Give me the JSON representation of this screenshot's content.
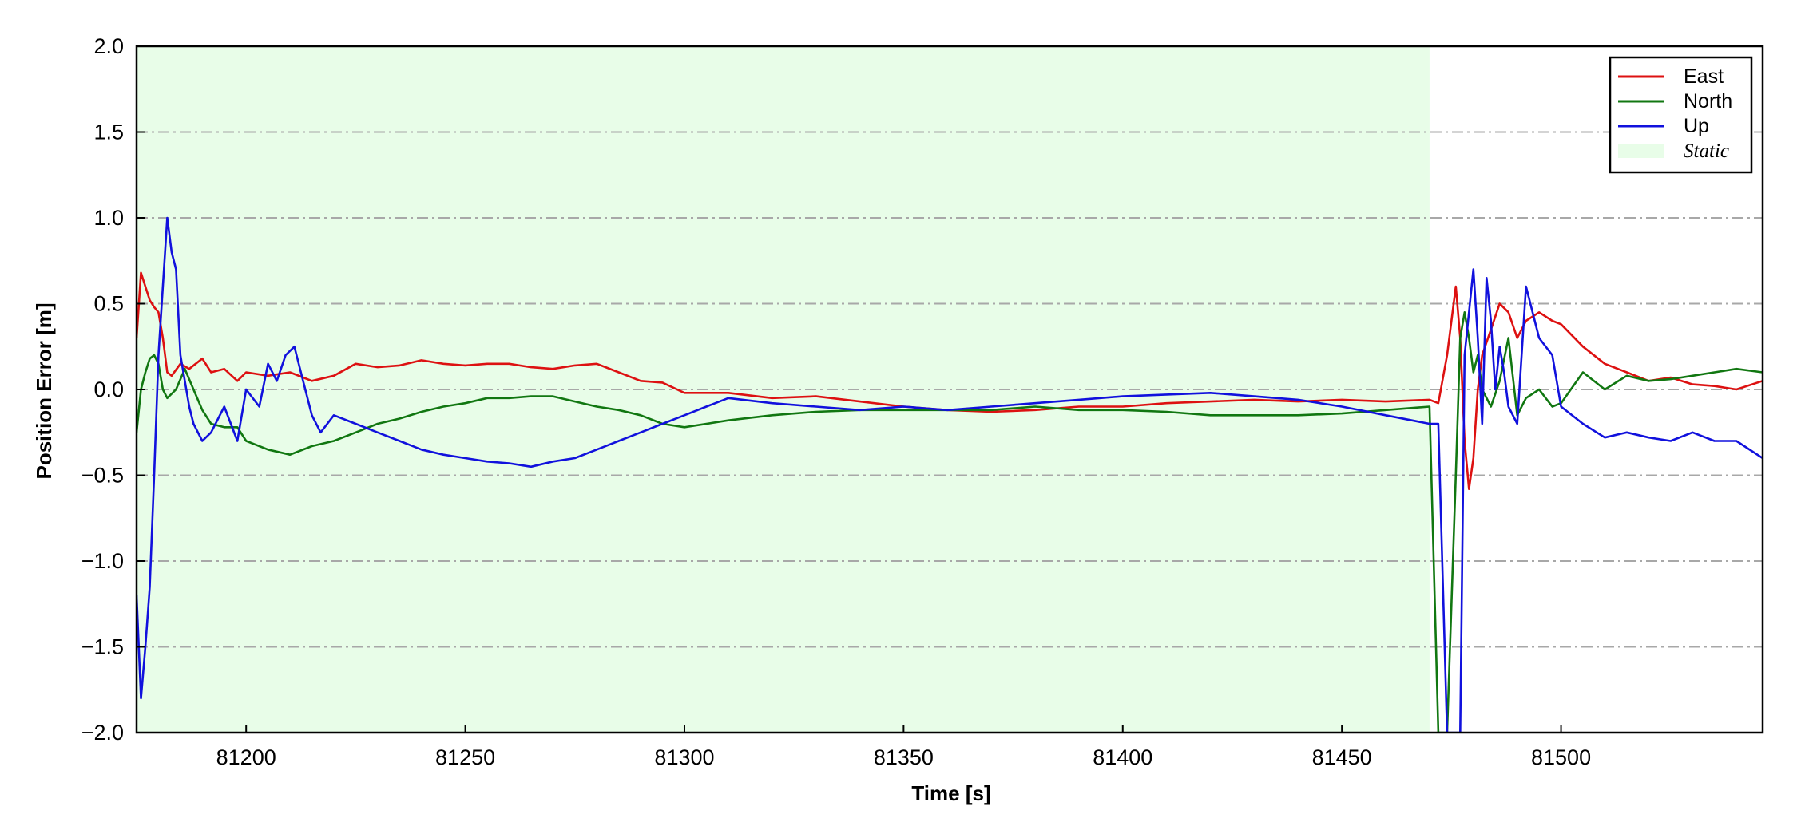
{
  "chart_data": {
    "type": "line",
    "title": "",
    "xlabel": "Time [s]",
    "ylabel": "Position Error [m]",
    "xlim": [
      81175,
      81546
    ],
    "ylim": [
      -2.0,
      2.0
    ],
    "x_ticks": [
      81200,
      81250,
      81300,
      81350,
      81400,
      81450,
      81500
    ],
    "y_ticks": [
      -2.0,
      -1.5,
      -1.0,
      -0.5,
      0.0,
      0.5,
      1.0,
      1.5,
      2.0
    ],
    "x_tick_labels": [
      "81200",
      "81250",
      "81300",
      "81350",
      "81400",
      "81450",
      "81500"
    ],
    "y_tick_labels": [
      "−2.0",
      "−1.5",
      "−1.0",
      "−0.5",
      "0.0",
      "0.5",
      "1.0",
      "1.5",
      "2.0"
    ],
    "grid": "horizontal dash-dot",
    "legend_position": "top-right",
    "shaded_regions": [
      {
        "name": "Static",
        "x_start": 81175,
        "x_end": 81470,
        "color": "#e8fde8"
      }
    ],
    "series": [
      {
        "name": "East",
        "color": "#dd1111",
        "x": [
          81175,
          81176,
          81177,
          81178,
          81179,
          81180,
          81181,
          81182,
          81183,
          81185,
          81187,
          81190,
          81192,
          81195,
          81198,
          81200,
          81205,
          81210,
          81215,
          81220,
          81225,
          81230,
          81235,
          81240,
          81245,
          81250,
          81255,
          81260,
          81265,
          81270,
          81275,
          81280,
          81285,
          81290,
          81295,
          81300,
          81310,
          81320,
          81330,
          81340,
          81350,
          81360,
          81370,
          81380,
          81390,
          81400,
          81410,
          81420,
          81430,
          81440,
          81450,
          81460,
          81470,
          81472,
          81474,
          81476,
          81477,
          81478,
          81479,
          81480,
          81481,
          81482,
          81484,
          81486,
          81488,
          81490,
          81492,
          81495,
          81498,
          81500,
          81505,
          81510,
          81515,
          81520,
          81525,
          81530,
          81535,
          81540,
          81546
        ],
        "y": [
          0.3,
          0.68,
          0.6,
          0.52,
          0.48,
          0.45,
          0.3,
          0.1,
          0.08,
          0.15,
          0.12,
          0.18,
          0.1,
          0.12,
          0.05,
          0.1,
          0.08,
          0.1,
          0.05,
          0.08,
          0.15,
          0.13,
          0.14,
          0.17,
          0.15,
          0.14,
          0.15,
          0.15,
          0.13,
          0.12,
          0.14,
          0.15,
          0.1,
          0.05,
          0.04,
          -0.02,
          -0.02,
          -0.05,
          -0.04,
          -0.07,
          -0.1,
          -0.12,
          -0.13,
          -0.12,
          -0.1,
          -0.1,
          -0.08,
          -0.07,
          -0.06,
          -0.07,
          -0.06,
          -0.07,
          -0.06,
          -0.08,
          0.2,
          0.6,
          0.3,
          -0.3,
          -0.58,
          -0.4,
          0.0,
          0.2,
          0.35,
          0.5,
          0.45,
          0.3,
          0.4,
          0.45,
          0.4,
          0.38,
          0.25,
          0.15,
          0.1,
          0.05,
          0.07,
          0.03,
          0.02,
          0.0,
          0.05
        ]
      },
      {
        "name": "North",
        "color": "#117711",
        "x": [
          81175,
          81176,
          81177,
          81178,
          81179,
          81180,
          81181,
          81182,
          81184,
          81186,
          81188,
          81190,
          81192,
          81195,
          81198,
          81200,
          81205,
          81210,
          81215,
          81220,
          81225,
          81230,
          81235,
          81240,
          81245,
          81250,
          81255,
          81260,
          81265,
          81270,
          81275,
          81280,
          81285,
          81290,
          81295,
          81300,
          81310,
          81320,
          81330,
          81340,
          81350,
          81360,
          81370,
          81380,
          81390,
          81400,
          81410,
          81420,
          81430,
          81440,
          81450,
          81460,
          81470,
          81472,
          81474,
          81476,
          81477,
          81478,
          81479,
          81480,
          81481,
          81482,
          81484,
          81486,
          81488,
          81490,
          81492,
          81495,
          81498,
          81500,
          81505,
          81510,
          81515,
          81520,
          81525,
          81530,
          81535,
          81540,
          81546
        ],
        "y": [
          -0.25,
          0.0,
          0.1,
          0.18,
          0.2,
          0.15,
          0.0,
          -0.05,
          0.0,
          0.12,
          0.0,
          -0.12,
          -0.2,
          -0.22,
          -0.22,
          -0.3,
          -0.35,
          -0.38,
          -0.33,
          -0.3,
          -0.25,
          -0.2,
          -0.17,
          -0.13,
          -0.1,
          -0.08,
          -0.05,
          -0.05,
          -0.04,
          -0.04,
          -0.07,
          -0.1,
          -0.12,
          -0.15,
          -0.2,
          -0.22,
          -0.18,
          -0.15,
          -0.13,
          -0.12,
          -0.12,
          -0.12,
          -0.12,
          -0.1,
          -0.12,
          -0.12,
          -0.13,
          -0.15,
          -0.15,
          -0.15,
          -0.14,
          -0.12,
          -0.1,
          -2.0,
          -2.0,
          -0.5,
          0.3,
          0.45,
          0.3,
          0.1,
          0.2,
          0.0,
          -0.1,
          0.05,
          0.3,
          -0.15,
          -0.05,
          0.0,
          -0.1,
          -0.08,
          0.1,
          0.0,
          0.08,
          0.05,
          0.06,
          0.08,
          0.1,
          0.12,
          0.1
        ]
      },
      {
        "name": "Up",
        "color": "#1111dd",
        "x": [
          81175,
          81176,
          81177,
          81178,
          81179,
          81180,
          81181,
          81182,
          81183,
          81184,
          81185,
          81186,
          81187,
          81188,
          81190,
          81192,
          81195,
          81198,
          81200,
          81203,
          81205,
          81207,
          81209,
          81211,
          81213,
          81215,
          81217,
          81220,
          81225,
          81230,
          81235,
          81240,
          81245,
          81250,
          81255,
          81260,
          81265,
          81270,
          81275,
          81280,
          81285,
          81290,
          81295,
          81300,
          81305,
          81310,
          81320,
          81330,
          81340,
          81350,
          81360,
          81370,
          81380,
          81390,
          81400,
          81410,
          81420,
          81430,
          81440,
          81450,
          81460,
          81470,
          81472,
          81474,
          81476,
          81477,
          81478,
          81479,
          81480,
          81481,
          81482,
          81483,
          81484,
          81485,
          81486,
          81487,
          81488,
          81490,
          81492,
          81495,
          81498,
          81500,
          81505,
          81510,
          81515,
          81520,
          81525,
          81530,
          81535,
          81540,
          81546
        ],
        "y": [
          -1.2,
          -1.8,
          -1.5,
          -1.15,
          -0.5,
          0.2,
          0.6,
          1.0,
          0.8,
          0.7,
          0.2,
          0.05,
          -0.1,
          -0.2,
          -0.3,
          -0.25,
          -0.1,
          -0.3,
          0.0,
          -0.1,
          0.15,
          0.05,
          0.2,
          0.25,
          0.05,
          -0.15,
          -0.25,
          -0.15,
          -0.2,
          -0.25,
          -0.3,
          -0.35,
          -0.38,
          -0.4,
          -0.42,
          -0.43,
          -0.45,
          -0.42,
          -0.4,
          -0.35,
          -0.3,
          -0.25,
          -0.2,
          -0.15,
          -0.1,
          -0.05,
          -0.08,
          -0.1,
          -0.12,
          -0.1,
          -0.12,
          -0.1,
          -0.08,
          -0.06,
          -0.04,
          -0.03,
          -0.02,
          -0.04,
          -0.06,
          -0.1,
          -0.15,
          -0.2,
          -0.2,
          -2.0,
          -2.0,
          -2.0,
          0.2,
          0.45,
          0.7,
          0.3,
          -0.2,
          0.65,
          0.4,
          0.0,
          0.25,
          0.1,
          -0.1,
          -0.2,
          0.6,
          0.3,
          0.2,
          -0.1,
          -0.2,
          -0.28,
          -0.25,
          -0.28,
          -0.3,
          -0.25,
          -0.3,
          -0.3,
          -0.4
        ]
      }
    ]
  }
}
